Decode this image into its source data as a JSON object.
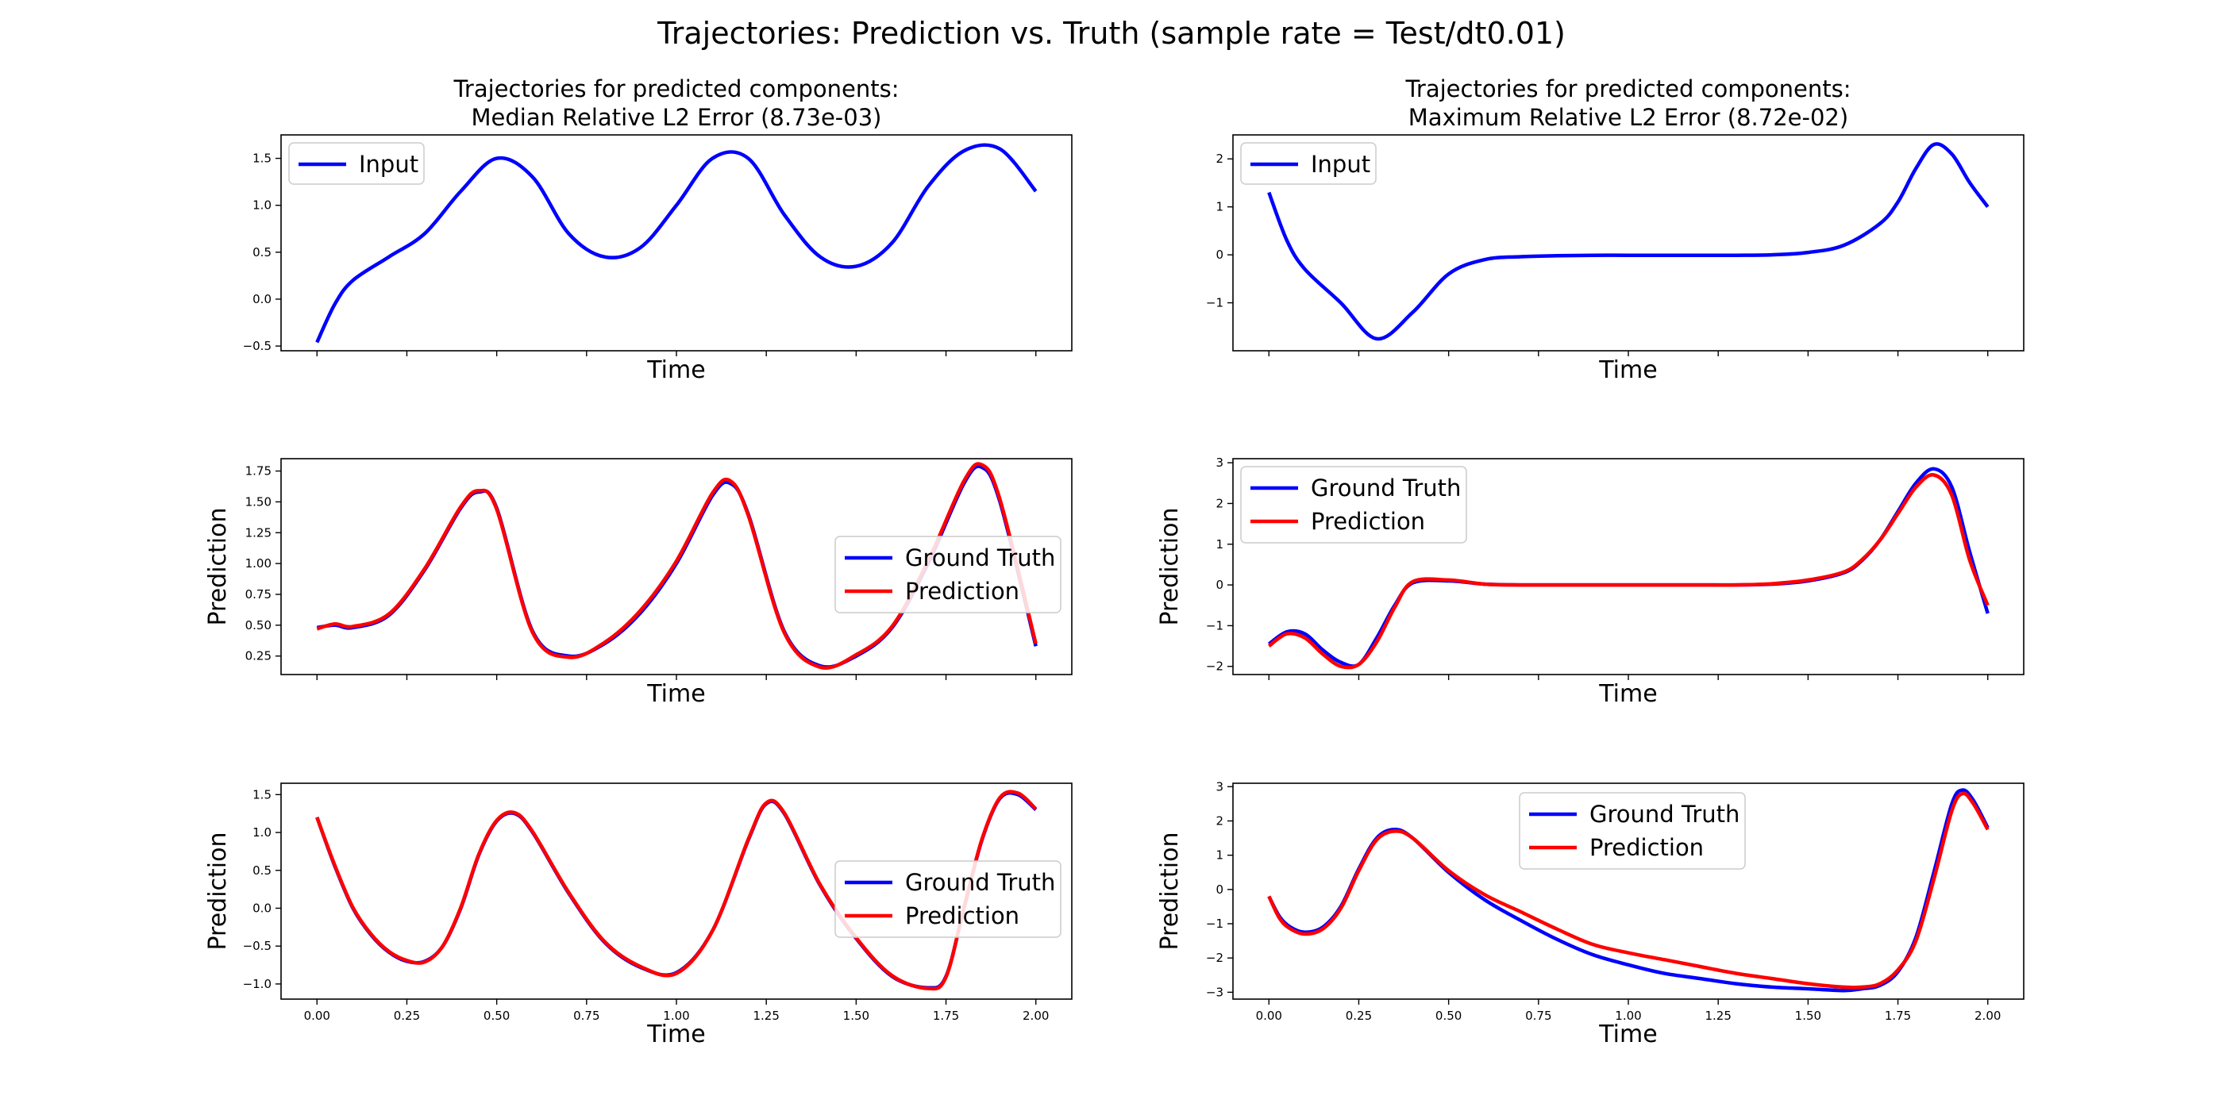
{
  "figure": {
    "suptitle": "Trajectories: Prediction vs. Truth (sample rate = Test/dt0.01)"
  },
  "colors": {
    "truth": "#0000ff",
    "prediction": "#ff0000",
    "input": "#0000ff"
  },
  "chart_data": [
    {
      "type": "line",
      "title_line1": "Trajectories for predicted components:",
      "title_line2": "Median Relative L2 Error (8.73e-03)",
      "xlabel": "Time",
      "ylabel": "",
      "xlim": [
        -0.1,
        2.1
      ],
      "ylim": [
        -0.55,
        1.75
      ],
      "yticks": [
        -0.5,
        0.0,
        0.5,
        1.0,
        1.5
      ],
      "ytick_labels": [
        "−0.5",
        "0.0",
        "0.5",
        "1.0",
        "1.5"
      ],
      "show_xtick_labels": false,
      "legend_position": "upper-left",
      "x": [
        0,
        0.05,
        0.1,
        0.2,
        0.3,
        0.4,
        0.5,
        0.6,
        0.7,
        0.8,
        0.9,
        1.0,
        1.1,
        1.2,
        1.3,
        1.4,
        1.5,
        1.6,
        1.7,
        1.8,
        1.9,
        2.0
      ],
      "series": [
        {
          "name": "Input",
          "color": "#0000ff",
          "values": [
            -0.46,
            -0.05,
            0.2,
            0.45,
            0.7,
            1.15,
            1.5,
            1.3,
            0.7,
            0.45,
            0.55,
            1.0,
            1.5,
            1.5,
            0.9,
            0.45,
            0.35,
            0.6,
            1.2,
            1.58,
            1.6,
            1.15
          ]
        }
      ]
    },
    {
      "type": "line",
      "title_line1": "Trajectories for predicted components:",
      "title_line2": "Maximum Relative L2 Error (8.72e-02)",
      "xlabel": "Time",
      "ylabel": "",
      "xlim": [
        -0.1,
        2.1
      ],
      "ylim": [
        -2.0,
        2.5
      ],
      "yticks": [
        -1,
        0,
        1,
        2
      ],
      "ytick_labels": [
        "−1",
        "0",
        "1",
        "2"
      ],
      "show_xtick_labels": false,
      "legend_position": "upper-left",
      "x": [
        0,
        0.05,
        0.1,
        0.2,
        0.3,
        0.4,
        0.5,
        0.6,
        0.7,
        0.8,
        0.9,
        1.0,
        1.1,
        1.2,
        1.3,
        1.4,
        1.5,
        1.6,
        1.7,
        1.75,
        1.8,
        1.85,
        1.9,
        1.95,
        2.0
      ],
      "series": [
        {
          "name": "Input",
          "color": "#0000ff",
          "values": [
            1.3,
            0.3,
            -0.3,
            -1.0,
            -1.75,
            -1.2,
            -0.4,
            -0.1,
            -0.04,
            -0.02,
            -0.01,
            -0.01,
            -0.01,
            -0.01,
            -0.01,
            0.0,
            0.05,
            0.2,
            0.65,
            1.1,
            1.8,
            2.3,
            2.1,
            1.5,
            1.0
          ]
        }
      ]
    },
    {
      "type": "line",
      "title_line1": "",
      "title_line2": "",
      "xlabel": "Time",
      "ylabel": "Prediction",
      "xlim": [
        -0.1,
        2.1
      ],
      "ylim": [
        0.1,
        1.85
      ],
      "yticks": [
        0.25,
        0.5,
        0.75,
        1.0,
        1.25,
        1.5,
        1.75
      ],
      "ytick_labels": [
        "0.25",
        "0.50",
        "0.75",
        "1.00",
        "1.25",
        "1.50",
        "1.75"
      ],
      "show_xtick_labels": false,
      "legend_position": "center-right",
      "x": [
        0,
        0.05,
        0.1,
        0.2,
        0.3,
        0.4,
        0.45,
        0.5,
        0.6,
        0.7,
        0.8,
        0.9,
        1.0,
        1.1,
        1.15,
        1.2,
        1.3,
        1.4,
        1.5,
        1.6,
        1.7,
        1.8,
        1.85,
        1.9,
        2.0
      ],
      "series": [
        {
          "name": "Ground Truth",
          "color": "#0000ff",
          "values": [
            0.48,
            0.5,
            0.48,
            0.58,
            0.95,
            1.45,
            1.58,
            1.45,
            0.45,
            0.25,
            0.35,
            0.6,
            1.0,
            1.55,
            1.65,
            1.4,
            0.45,
            0.17,
            0.25,
            0.48,
            1.0,
            1.65,
            1.78,
            1.5,
            0.33
          ]
        },
        {
          "name": "Prediction",
          "color": "#ff0000",
          "values": [
            0.47,
            0.51,
            0.49,
            0.59,
            0.96,
            1.46,
            1.59,
            1.44,
            0.44,
            0.24,
            0.36,
            0.62,
            1.02,
            1.57,
            1.67,
            1.39,
            0.44,
            0.16,
            0.26,
            0.49,
            1.02,
            1.67,
            1.8,
            1.52,
            0.35
          ]
        }
      ]
    },
    {
      "type": "line",
      "title_line1": "",
      "title_line2": "",
      "xlabel": "Time",
      "ylabel": "Prediction",
      "xlim": [
        -0.1,
        2.1
      ],
      "ylim": [
        -2.2,
        3.1
      ],
      "yticks": [
        -2,
        -1,
        0,
        1,
        2,
        3
      ],
      "ytick_labels": [
        "−2",
        "−1",
        "0",
        "1",
        "2",
        "3"
      ],
      "show_xtick_labels": false,
      "legend_position": "upper-left",
      "x": [
        0,
        0.05,
        0.1,
        0.15,
        0.2,
        0.25,
        0.3,
        0.35,
        0.4,
        0.5,
        0.6,
        0.7,
        0.8,
        0.9,
        1.0,
        1.1,
        1.2,
        1.3,
        1.4,
        1.5,
        1.6,
        1.65,
        1.7,
        1.75,
        1.8,
        1.85,
        1.9,
        1.95,
        2.0
      ],
      "series": [
        {
          "name": "Ground Truth",
          "color": "#0000ff",
          "values": [
            -1.45,
            -1.15,
            -1.2,
            -1.6,
            -1.9,
            -1.95,
            -1.3,
            -0.5,
            0.05,
            0.1,
            0.02,
            0.0,
            0.0,
            0.0,
            0.0,
            0.0,
            0.0,
            0.0,
            0.02,
            0.1,
            0.3,
            0.6,
            1.1,
            1.8,
            2.5,
            2.85,
            2.4,
            0.8,
            -0.7
          ]
        },
        {
          "name": "Prediction",
          "color": "#ff0000",
          "values": [
            -1.5,
            -1.2,
            -1.3,
            -1.7,
            -2.0,
            -1.95,
            -1.4,
            -0.55,
            0.08,
            0.12,
            0.02,
            0.0,
            0.0,
            0.0,
            0.0,
            0.0,
            0.0,
            0.0,
            0.03,
            0.12,
            0.32,
            0.62,
            1.1,
            1.75,
            2.4,
            2.7,
            2.2,
            0.6,
            -0.5
          ]
        }
      ]
    },
    {
      "type": "line",
      "title_line1": "",
      "title_line2": "",
      "xlabel": "Time",
      "ylabel": "Prediction",
      "xlim": [
        -0.1,
        2.1
      ],
      "ylim": [
        -1.2,
        1.65
      ],
      "yticks": [
        -1.0,
        -0.5,
        0.0,
        0.5,
        1.0,
        1.5
      ],
      "ytick_labels": [
        "−1.0",
        "−0.5",
        "0.0",
        "0.5",
        "1.0",
        "1.5"
      ],
      "show_xtick_labels": true,
      "xticks": [
        0.0,
        0.25,
        0.5,
        0.75,
        1.0,
        1.25,
        1.5,
        1.75,
        2.0
      ],
      "xtick_labels": [
        "0.00",
        "0.25",
        "0.50",
        "0.75",
        "1.00",
        "1.25",
        "1.50",
        "1.75",
        "2.00"
      ],
      "legend_position": "center-right",
      "x": [
        0,
        0.05,
        0.1,
        0.15,
        0.2,
        0.25,
        0.3,
        0.35,
        0.4,
        0.45,
        0.5,
        0.55,
        0.6,
        0.7,
        0.8,
        0.9,
        1.0,
        1.1,
        1.2,
        1.25,
        1.3,
        1.4,
        1.5,
        1.6,
        1.7,
        1.75,
        1.8,
        1.85,
        1.9,
        1.95,
        2.0
      ],
      "series": [
        {
          "name": "Ground Truth",
          "color": "#0000ff",
          "values": [
            1.2,
            0.55,
            0.0,
            -0.35,
            -0.58,
            -0.7,
            -0.7,
            -0.5,
            0.0,
            0.7,
            1.15,
            1.25,
            1.0,
            0.2,
            -0.45,
            -0.78,
            -0.85,
            -0.3,
            0.9,
            1.38,
            1.25,
            0.3,
            -0.4,
            -0.9,
            -1.05,
            -0.9,
            0.0,
            0.9,
            1.45,
            1.5,
            1.3
          ]
        },
        {
          "name": "Prediction",
          "color": "#ff0000",
          "values": [
            1.2,
            0.56,
            0.01,
            -0.34,
            -0.57,
            -0.69,
            -0.71,
            -0.5,
            0.01,
            0.71,
            1.16,
            1.26,
            1.01,
            0.21,
            -0.44,
            -0.77,
            -0.86,
            -0.3,
            0.91,
            1.39,
            1.26,
            0.31,
            -0.39,
            -0.89,
            -1.06,
            -0.91,
            0.01,
            0.91,
            1.46,
            1.52,
            1.31
          ]
        }
      ]
    },
    {
      "type": "line",
      "title_line1": "",
      "title_line2": "",
      "xlabel": "Time",
      "ylabel": "Prediction",
      "xlim": [
        -0.1,
        2.1
      ],
      "ylim": [
        -3.2,
        3.1
      ],
      "yticks": [
        -3,
        -2,
        -1,
        0,
        1,
        2,
        3
      ],
      "ytick_labels": [
        "−3",
        "−2",
        "−1",
        "0",
        "1",
        "2",
        "3"
      ],
      "show_xtick_labels": true,
      "xticks": [
        0.0,
        0.25,
        0.5,
        0.75,
        1.0,
        1.25,
        1.5,
        1.75,
        2.0
      ],
      "xtick_labels": [
        "0.00",
        "0.25",
        "0.50",
        "0.75",
        "1.00",
        "1.25",
        "1.50",
        "1.75",
        "2.00"
      ],
      "legend_position": "upper-center",
      "x": [
        0,
        0.03,
        0.06,
        0.1,
        0.15,
        0.2,
        0.25,
        0.3,
        0.35,
        0.4,
        0.5,
        0.6,
        0.7,
        0.8,
        0.9,
        1.0,
        1.1,
        1.2,
        1.3,
        1.4,
        1.5,
        1.6,
        1.65,
        1.7,
        1.75,
        1.8,
        1.85,
        1.9,
        1.93,
        1.96,
        2.0
      ],
      "series": [
        {
          "name": "Ground Truth",
          "color": "#0000ff",
          "values": [
            -0.2,
            -0.8,
            -1.1,
            -1.25,
            -1.1,
            -0.5,
            0.6,
            1.5,
            1.75,
            1.5,
            0.5,
            -0.3,
            -0.9,
            -1.45,
            -1.9,
            -2.2,
            -2.45,
            -2.6,
            -2.75,
            -2.85,
            -2.9,
            -2.95,
            -2.9,
            -2.8,
            -2.4,
            -1.4,
            0.5,
            2.5,
            2.9,
            2.6,
            1.8
          ]
        },
        {
          "name": "Prediction",
          "color": "#ff0000",
          "values": [
            -0.2,
            -0.85,
            -1.15,
            -1.3,
            -1.15,
            -0.55,
            0.55,
            1.45,
            1.7,
            1.5,
            0.55,
            -0.15,
            -0.65,
            -1.15,
            -1.6,
            -1.85,
            -2.05,
            -2.25,
            -2.45,
            -2.6,
            -2.75,
            -2.85,
            -2.85,
            -2.75,
            -2.35,
            -1.5,
            0.3,
            2.3,
            2.8,
            2.5,
            1.75
          ]
        }
      ]
    }
  ]
}
